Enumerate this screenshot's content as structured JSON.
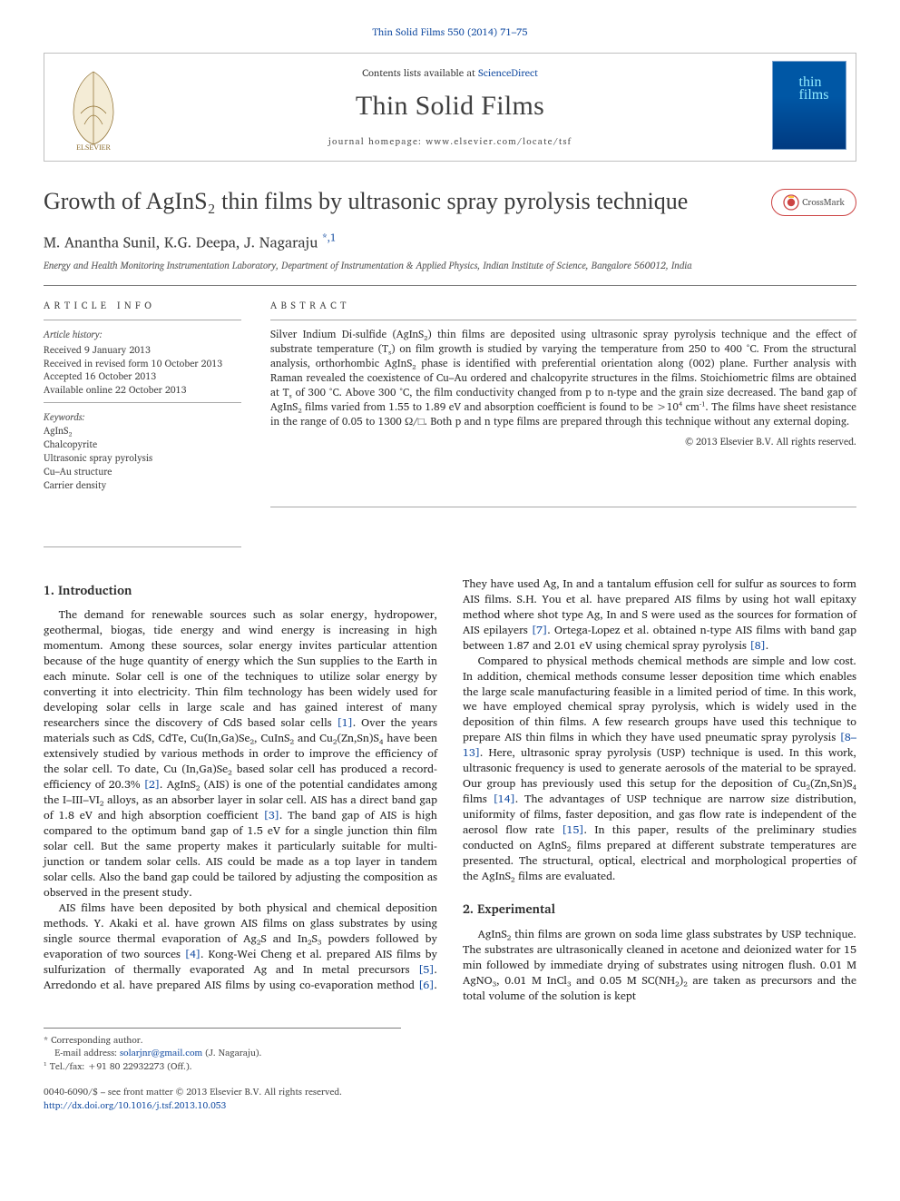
{
  "colors": {
    "link": "#1a51a4",
    "text": "#222222",
    "headerBorder": "#bfbfbf",
    "rule": "#7d7d7d",
    "coverBg1": "#0057a5",
    "coverBg2": "#003a81",
    "coverText": "#90eaff"
  },
  "journal_ref": "Thin Solid Films 550 (2014) 71–75",
  "header": {
    "contents_prefix": "Contents lists available at ",
    "contents_link": "ScienceDirect",
    "journal_title": "Thin Solid Films",
    "homepage": "journal homepage: www.elsevier.com/locate/tsf",
    "cover_title": "thin\nfilms"
  },
  "crossmark_label": "CrossMark",
  "title": "Growth of AgInS₂ thin films by ultrasonic spray pyrolysis technique",
  "authors_html": "M. Anantha Sunil, K.G. Deepa, J. Nagaraju ",
  "author_marks": "*,1",
  "affiliation": "Energy and Health Monitoring Instrumentation Laboratory, Department of Instrumentation & Applied Physics, Indian Institute of Science, Bangalore 560012, India",
  "article_info_heading": "ARTICLE INFO",
  "abstract_heading": "ABSTRACT",
  "history": {
    "label": "Article history:",
    "items": [
      "Received 9 January 2013",
      "Received in revised form 10 October 2013",
      "Accepted 16 October 2013",
      "Available online 22 October 2013"
    ]
  },
  "keywords": {
    "label": "Keywords:",
    "items": [
      "AgInS₂",
      "Chalcopyrite",
      "Ultrasonic spray pyrolysis",
      "Cu–Au structure",
      "Carrier density"
    ]
  },
  "abstract": "Silver Indium Di-sulfide (AgInS₂) thin films are deposited using ultrasonic spray pyrolysis technique and the effect of substrate temperature (Tₛ) on film growth is studied by varying the temperature from 250 to 400 °C. From the structural analysis, orthorhombic AgInS₂ phase is identified with preferential orientation along (002) plane. Further analysis with Raman revealed the coexistence of Cu–Au ordered and chalcopyrite structures in the films. Stoichiometric films are obtained at Tₛ of 300 °C. Above 300 °C, the film conductivity changed from p to n-type and the grain size decreased. The band gap of AgInS₂ films varied from 1.55 to 1.89 eV and absorption coefficient is found to be >10⁴ cm⁻¹. The films have sheet resistance in the range of 0.05 to 1300 Ω/□. Both p and n type films are prepared through this technique without any external doping.",
  "copyright": "© 2013 Elsevier B.V. All rights reserved.",
  "sections": [
    {
      "heading": "1. Introduction",
      "paragraphs": [
        "The demand for renewable sources such as solar energy, hydropower, geothermal, biogas, tide energy and wind energy is increasing in high momentum. Among these sources, solar energy invites particular attention because of the huge quantity of energy which the Sun supplies to the Earth in each minute. Solar cell is one of the techniques to utilize solar energy by converting it into electricity. Thin film technology has been widely used for developing solar cells in large scale and has gained interest of many researchers since the discovery of CdS based solar cells [1]. Over the years materials such as CdS, CdTe, Cu(In,Ga)Se₂, CuInS₂ and Cu₂(Zn,Sn)S₄ have been extensively studied by various methods in order to improve the efficiency of the solar cell. To date, Cu (In,Ga)Se₂ based solar cell has produced a record-efficiency of 20.3% [2]. AgInS₂ (AIS) is one of the potential candidates among the I–III–VI₂ alloys, as an absorber layer in solar cell. AIS has a direct band gap of 1.8 eV and high absorption coefficient [3]. The band gap of AIS is high compared to the optimum band gap of 1.5 eV for a single junction thin film solar cell. But the same property makes it particularly suitable for multi-junction or tandem solar cells. AIS could be made as a top layer in tandem solar cells. Also the band gap could be tailored by adjusting the composition as observed in the present study.",
        "AIS films have been deposited by both physical and chemical deposition methods. Y. Akaki et al. have grown AIS films on glass substrates by using single source thermal evaporation of Ag₂S and In₂S₃ powders followed by evaporation of two sources [4]. Kong-Wei Cheng et al. prepared AIS films by sulfurization of thermally evaporated Ag and In metal precursors [5]. Arredondo et al. have prepared AIS films by using co-evaporation method [6]. They have used Ag, In and a tantalum effusion cell for sulfur as sources to form AIS films. S.H. You et al. have prepared AIS films by using hot wall epitaxy method where shot type Ag, In and S were used as the sources for formation of AIS epilayers [7]. Ortega-Lopez et al. obtained n-type AIS films with band gap between 1.87 and 2.01 eV using chemical spray pyrolysis [8].",
        "Compared to physical methods chemical methods are simple and low cost. In addition, chemical methods consume lesser deposition time which enables the large scale manufacturing feasible in a limited period of time. In this work, we have employed chemical spray pyrolysis, which is widely used in the deposition of thin films. A few research groups have used this technique to prepare AIS thin films in which they have used pneumatic spray pyrolysis [8–13]. Here, ultrasonic spray pyrolysis (USP) technique is used. In this work, ultrasonic frequency is used to generate aerosols of the material to be sprayed. Our group has previously used this setup for the deposition of Cu₂(Zn,Sn)S₄ films [14]. The advantages of USP technique are narrow size distribution, uniformity of films, faster deposition, and gas flow rate is independent of the aerosol flow rate [15]. In this paper, results of the preliminary studies conducted on AgInS₂ films prepared at different substrate temperatures are presented. The structural, optical, electrical and morphological properties of the AgInS₂ films are evaluated."
      ]
    },
    {
      "heading": "2. Experimental",
      "paragraphs": [
        "AgInS₂ thin films are grown on soda lime glass substrates by USP technique. The substrates are ultrasonically cleaned in acetone and deionized water for 15 min followed by immediate drying of substrates using nitrogen flush. 0.01 M AgNO₃, 0.01 M InCl₃ and 0.05 M SC(NH₂)₂ are taken as precursors and the total volume of the solution is kept"
      ]
    }
  ],
  "footnotes": {
    "corresponding": "* Corresponding author.",
    "email_label": "E-mail address: ",
    "email": "solarjnr@gmail.com",
    "email_who": " (J. Nagaraju).",
    "fn1": "¹ Tel./fax: +91 80 22932273 (Off.)."
  },
  "footer": {
    "left_line1": "0040-6090/$ – see front matter © 2013 Elsevier B.V. All rights reserved.",
    "doi": "http://dx.doi.org/10.1016/j.tsf.2013.10.053"
  }
}
